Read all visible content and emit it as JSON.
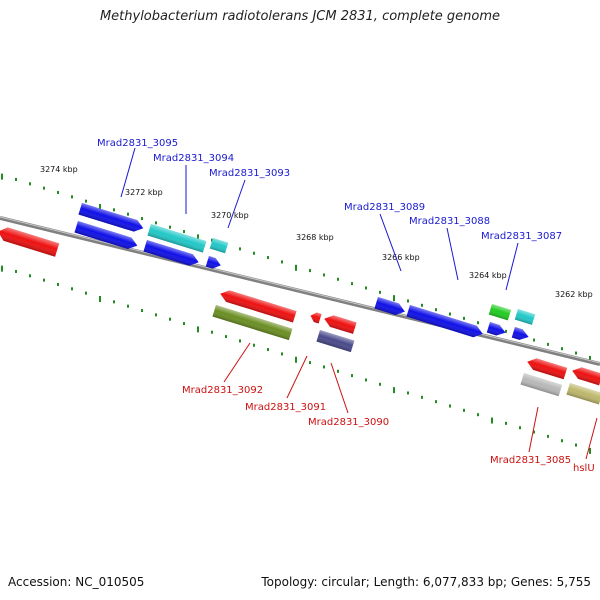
{
  "title": "Methylobacterium radiotolerans JCM 2831, complete genome",
  "footer": {
    "accession": "Accession: NC_010505",
    "summary": "Topology: circular; Length: 6,077,833 bp; Genes: 5,755"
  },
  "colors": {
    "backbone": "#808080",
    "forward_label": "#1a1ad0",
    "reverse_label": "#cc1111",
    "tick": "#228b22"
  },
  "ruler": [
    {
      "label": "3274 kbp"
    },
    {
      "label": "3272 kbp"
    },
    {
      "label": "3270 kbp"
    },
    {
      "label": "3268 kbp"
    },
    {
      "label": "3266 kbp"
    },
    {
      "label": "3264 kbp"
    },
    {
      "label": "3262 kbp"
    }
  ],
  "genes_forward": [
    {
      "label": "Mrad2831_3095",
      "color": "#1010e8"
    },
    {
      "label": "Mrad2831_3094",
      "color": "#22c8c8"
    },
    {
      "label": "Mrad2831_3093",
      "color": "#1010e8"
    },
    {
      "label": "Mrad2831_3089",
      "color": "#1010e8"
    },
    {
      "label": "Mrad2831_3088",
      "color": "#1010e8"
    },
    {
      "label": "Mrad2831_3087",
      "color": "#1010e8"
    }
  ],
  "genes_reverse": [
    {
      "label": "Mrad2831_3092",
      "color": "#6b8e23"
    },
    {
      "label": "Mrad2831_3091",
      "color": "#ee1111"
    },
    {
      "label": "Mrad2831_3090",
      "color": "#4a4a8c"
    },
    {
      "label": "Mrad2831_3085",
      "color": "#b8b8b8"
    },
    {
      "label": "hslU",
      "color": "#bdb76b"
    }
  ]
}
